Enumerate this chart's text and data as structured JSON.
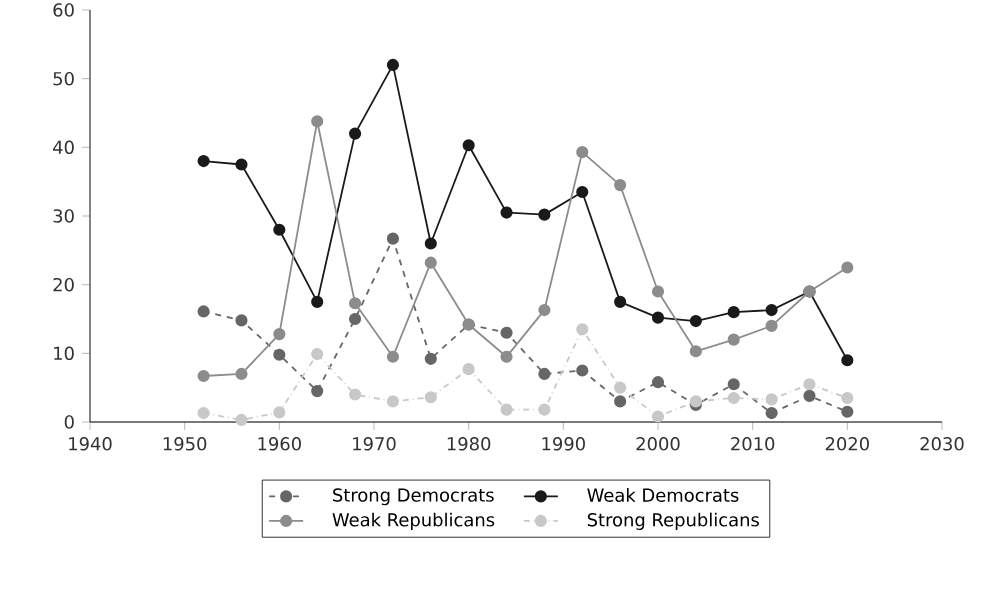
{
  "chart_data": {
    "type": "line",
    "x": [
      1952,
      1956,
      1960,
      1964,
      1968,
      1972,
      1976,
      1980,
      1984,
      1988,
      1992,
      1996,
      2000,
      2004,
      2008,
      2012,
      2016,
      2020
    ],
    "series": [
      {
        "name": "Strong Democrats",
        "color": "#666666",
        "line_style": "dashed",
        "values": [
          16.1,
          14.8,
          9.8,
          4.5,
          15,
          26.7,
          9.2,
          14.2,
          13,
          7,
          7.5,
          3,
          5.8,
          2.5,
          5.5,
          1.3,
          3.8,
          1.5
        ]
      },
      {
        "name": "Weak Democrats",
        "color": "#1a1a1a",
        "line_style": "solid",
        "values": [
          38,
          37.5,
          28,
          17.5,
          42,
          52,
          26,
          40.3,
          30.5,
          30.2,
          33.5,
          17.5,
          15.2,
          14.7,
          16,
          16.3,
          19,
          9
        ]
      },
      {
        "name": "Weak Republicans",
        "color": "#8c8c8c",
        "line_style": "solid",
        "values": [
          6.7,
          7,
          12.8,
          43.8,
          17.3,
          9.5,
          23.2,
          14.2,
          9.5,
          16.3,
          39.3,
          34.5,
          19,
          10.3,
          12,
          14,
          19,
          22.5
        ]
      },
      {
        "name": "Strong Republicans",
        "color": "#c8c8c8",
        "line_style": "dashdot",
        "values": [
          1.3,
          0.3,
          1.4,
          9.9,
          4,
          3,
          3.6,
          7.7,
          1.8,
          1.8,
          13.5,
          5,
          0.8,
          3,
          3.5,
          3.3,
          5.5,
          3.5
        ]
      }
    ],
    "xlim": [
      1940,
      2030
    ],
    "ylim": [
      0,
      60
    ],
    "xticks": [
      1940,
      1950,
      1960,
      1970,
      1980,
      1990,
      2000,
      2010,
      2020,
      2030
    ],
    "yticks": [
      0,
      10,
      20,
      30,
      40,
      50,
      60
    ],
    "grid": false,
    "legend": "bottom",
    "marker": "circle"
  }
}
